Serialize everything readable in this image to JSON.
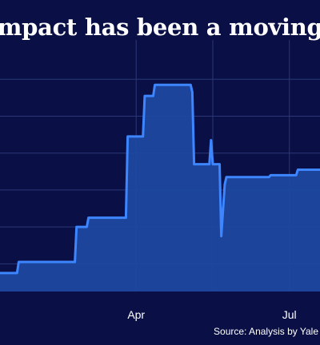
{
  "title": "impact has been a moving",
  "source": "Source: Analysis by Yale",
  "colors": {
    "background": "#0a1045",
    "grid": "#2b3778",
    "line": "#3d86ff",
    "fill": "#1d4aa3"
  },
  "chart_data": {
    "type": "area",
    "title": "impact has been a moving",
    "xlabel": "",
    "ylabel": "",
    "grid": true,
    "x_tick_labels": [
      "Apr",
      "Jul"
    ],
    "x": [
      1,
      10,
      11,
      44,
      45,
      51,
      52,
      58,
      59,
      74,
      75,
      84,
      85,
      90,
      91,
      105,
      106,
      108,
      109,
      112,
      113,
      114,
      115,
      116,
      117,
      123,
      124,
      125,
      126,
      127,
      128,
      129,
      130,
      132,
      133,
      134,
      135,
      136,
      137,
      158,
      159,
      174,
      175
    ],
    "values": [
      5,
      5,
      8,
      8,
      17.5,
      17.5,
      20,
      20,
      20,
      20,
      42,
      42,
      53,
      53,
      56,
      56,
      56,
      56,
      56,
      56,
      54,
      34.5,
      34.5,
      34.5,
      34.5,
      34.5,
      41,
      34.5,
      34.5,
      34.5,
      34.5,
      34.5,
      15,
      29,
      31,
      31,
      31,
      31,
      31,
      31,
      31.5,
      31.5,
      33
    ],
    "ylim": [
      0,
      66
    ],
    "y_gridlines": [
      7.5,
      17.5,
      27.5,
      37.5,
      47.5,
      57.5
    ],
    "series": [
      {
        "values_ref": "values"
      }
    ]
  }
}
